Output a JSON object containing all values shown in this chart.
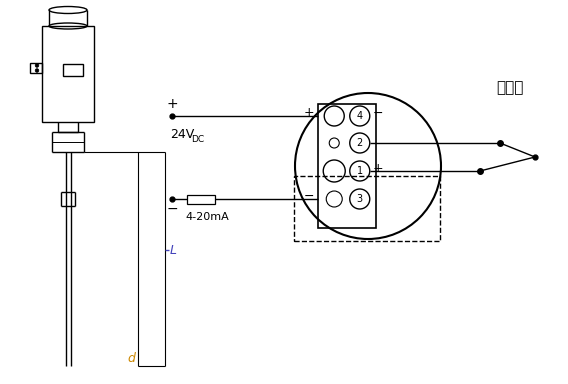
{
  "bg_color": "#ffffff",
  "line_color": "#000000",
  "dim_color_L": "#4444bb",
  "dim_color_d": "#cc8800",
  "label_24v": "24V",
  "label_dc": "DC",
  "label_4_20ma": "4-20mA",
  "label_plus": "+",
  "label_minus": "−",
  "label_thermocouple": "热电偶",
  "label_L": "L",
  "label_d": "d",
  "terminal_numbers": [
    "4",
    "2",
    "1",
    "3"
  ]
}
